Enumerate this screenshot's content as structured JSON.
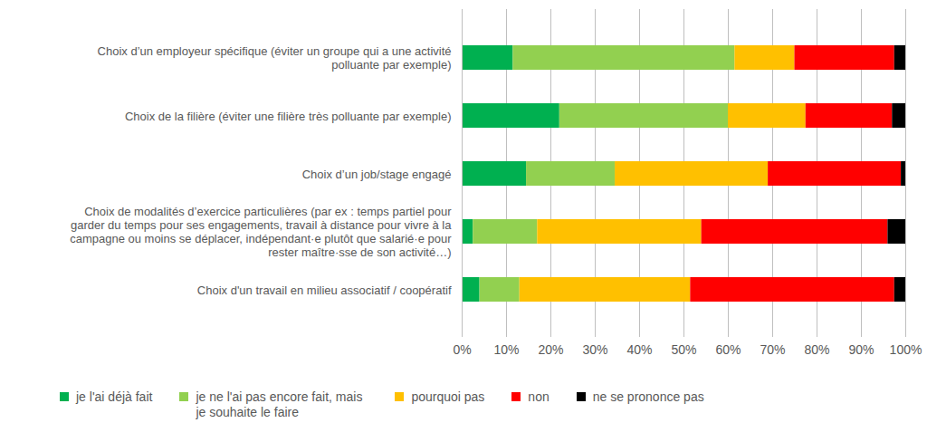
{
  "chart_data": {
    "type": "bar",
    "orientation": "horizontal",
    "stacked": true,
    "grid": true,
    "legend": "bottom",
    "categories": [
      "Choix d’un employeur spécifique (éviter un groupe qui a une activité polluante par exemple)",
      "Choix de la filière (éviter une filière très polluante par exemple)",
      "Choix d’un job/stage engagé",
      "Choix de modalités d’exercice particulières (par ex : temps partiel pour garder du temps pour ses engagements, travail à distance pour vivre à la campagne ou moins se déplacer, indépendant·e plutôt que salarié·e pour rester maître·sse de son activité…)",
      "Choix d'un travail en milieu associatif / coopératif"
    ],
    "series": [
      {
        "name": "je l'ai déjà fait",
        "color": "#00b050",
        "values": [
          11.5,
          22,
          14.5,
          2.5,
          4
        ]
      },
      {
        "name": "je ne l'ai pas encore fait, mais je souhaite le faire",
        "color": "#92d050",
        "values": [
          50,
          38,
          20,
          14.5,
          9
        ]
      },
      {
        "name": "pourquoi pas",
        "color": "#ffc000",
        "values": [
          13.5,
          17.5,
          34.5,
          37,
          38.5
        ]
      },
      {
        "name": "non",
        "color": "#ff0000",
        "values": [
          22.5,
          19.5,
          30,
          42,
          46
        ]
      },
      {
        "name": "ne se prononce pas",
        "color": "#000000",
        "values": [
          2.5,
          3,
          1,
          4,
          2.5
        ]
      }
    ],
    "xlim": [
      0,
      100
    ],
    "xticks": [
      {
        "value": 0,
        "label": "0%"
      },
      {
        "value": 10,
        "label": "10%"
      },
      {
        "value": 20,
        "label": "20%"
      },
      {
        "value": 30,
        "label": "30%"
      },
      {
        "value": 40,
        "label": "40%"
      },
      {
        "value": 50,
        "label": "50%"
      },
      {
        "value": 60,
        "label": "60%"
      },
      {
        "value": 70,
        "label": "70%"
      },
      {
        "value": 80,
        "label": "80%"
      },
      {
        "value": 90,
        "label": "90%"
      },
      {
        "value": 100,
        "label": "100%"
      }
    ]
  }
}
